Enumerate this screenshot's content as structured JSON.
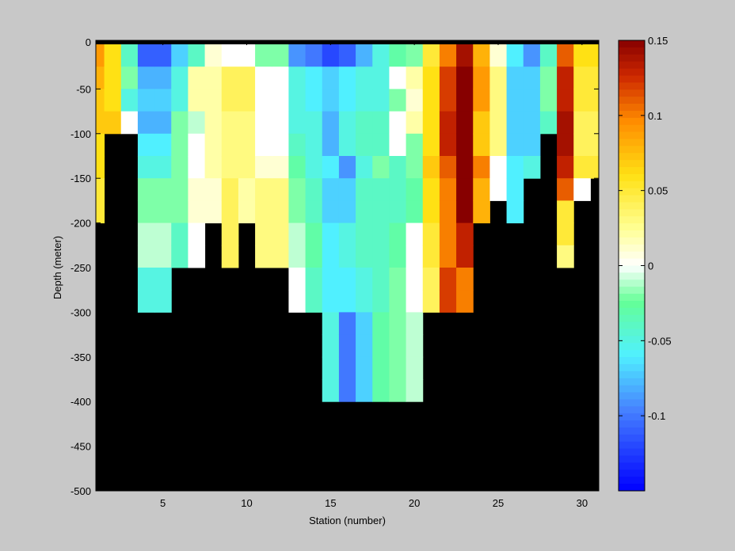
{
  "chart_data": {
    "type": "heatmap",
    "title": "",
    "xlabel": "Station (number)",
    "ylabel": "Depth (meter)",
    "xlim": [
      1,
      31
    ],
    "ylim": [
      -500,
      0
    ],
    "xticks": [
      5,
      10,
      15,
      20,
      25,
      30
    ],
    "yticks": [
      0,
      -50,
      -100,
      -150,
      -200,
      -250,
      -300,
      -350,
      -400,
      -450,
      -500
    ],
    "depth_bins": [
      0,
      -25,
      -50,
      -75,
      -100,
      -125,
      -150,
      -175,
      -200,
      -225,
      -250,
      -275,
      -300,
      -325,
      -350,
      -375,
      -400
    ],
    "mask_color": "#000000",
    "colorbar": {
      "colormap": "jet-like diverging",
      "range": [
        -0.15,
        0.15
      ],
      "ticks": [
        0.15,
        0.1,
        0.05,
        0,
        -0.05,
        -0.1
      ],
      "tick_labels": [
        "0.15",
        "0.1",
        "0.05",
        "0",
        "-0.05",
        "-0.1"
      ]
    },
    "stations": [
      {
        "station": 1,
        "values": [
          0.09,
          0.08,
          0.07,
          0.07,
          0.06,
          0.06,
          0.05,
          0.05
        ]
      },
      {
        "station": 2,
        "values": [
          0.06,
          0.06,
          0.06,
          0.07
        ]
      },
      {
        "station": 3,
        "values": [
          -0.04,
          -0.02,
          -0.05,
          0.0
        ]
      },
      {
        "station": 4,
        "values": [
          -0.11,
          -0.08,
          -0.07,
          -0.08,
          -0.06,
          -0.05,
          -0.02,
          -0.02,
          -0.01,
          -0.01,
          -0.05,
          -0.05
        ]
      },
      {
        "station": 5,
        "values": [
          -0.11,
          -0.08,
          -0.07,
          -0.08,
          -0.06,
          -0.05,
          -0.02,
          -0.02,
          -0.01,
          -0.01,
          -0.05,
          -0.05
        ]
      },
      {
        "station": 6,
        "values": [
          -0.07,
          -0.05,
          -0.05,
          -0.02,
          -0.02,
          -0.02,
          -0.02,
          -0.02,
          -0.04,
          -0.04
        ]
      },
      {
        "station": 7,
        "values": [
          -0.04,
          0.02,
          0.02,
          -0.01,
          0.0,
          0.0,
          0.01,
          0.01,
          0.0,
          0.0
        ]
      },
      {
        "station": 8,
        "values": [
          0.01,
          0.02,
          0.02,
          0.02,
          0.02,
          0.02,
          0.01,
          0.01
        ]
      },
      {
        "station": 9,
        "values": [
          0.0,
          0.04,
          0.04,
          0.03,
          0.03,
          0.03,
          0.04,
          0.04,
          0.04,
          0.04
        ]
      },
      {
        "station": 10,
        "values": [
          0.0,
          0.04,
          0.04,
          0.03,
          0.03,
          0.03,
          0.02,
          0.02
        ]
      },
      {
        "station": 11,
        "values": [
          -0.02,
          0.0,
          0.0,
          0.0,
          0.0,
          0.01,
          0.03,
          0.03,
          0.03,
          0.03
        ]
      },
      {
        "station": 12,
        "values": [
          -0.02,
          0.0,
          0.0,
          0.0,
          0.0,
          0.01,
          0.03,
          0.03,
          0.03,
          0.03
        ]
      },
      {
        "station": 13,
        "values": [
          -0.09,
          -0.05,
          -0.05,
          -0.05,
          -0.04,
          -0.03,
          -0.02,
          -0.02,
          -0.01,
          -0.01,
          0.0,
          0.0
        ]
      },
      {
        "station": 14,
        "values": [
          -0.1,
          -0.06,
          -0.06,
          -0.05,
          -0.05,
          -0.05,
          -0.04,
          -0.04,
          -0.03,
          -0.03,
          -0.04,
          -0.04
        ]
      },
      {
        "station": 15,
        "values": [
          -0.12,
          -0.07,
          -0.07,
          -0.08,
          -0.08,
          -0.06,
          -0.07,
          -0.07,
          -0.06,
          -0.06,
          -0.06,
          -0.06,
          -0.05,
          -0.05,
          -0.05,
          -0.05
        ]
      },
      {
        "station": 16,
        "values": [
          -0.11,
          -0.06,
          -0.06,
          -0.05,
          -0.05,
          -0.09,
          -0.07,
          -0.07,
          -0.05,
          -0.05,
          -0.06,
          -0.06,
          -0.1,
          -0.1,
          -0.1,
          -0.1
        ]
      },
      {
        "station": 17,
        "values": [
          -0.08,
          -0.05,
          -0.05,
          -0.04,
          -0.04,
          -0.05,
          -0.04,
          -0.04,
          -0.04,
          -0.04,
          -0.05,
          -0.05,
          -0.07,
          -0.07,
          -0.07,
          -0.07
        ]
      },
      {
        "station": 18,
        "values": [
          -0.05,
          -0.05,
          -0.05,
          -0.04,
          -0.04,
          -0.02,
          -0.04,
          -0.04,
          -0.04,
          -0.04,
          -0.04,
          -0.04,
          -0.03,
          -0.03,
          -0.03,
          -0.03
        ]
      },
      {
        "station": 19,
        "values": [
          -0.03,
          0.0,
          -0.02,
          0.0,
          0.0,
          -0.04,
          -0.04,
          -0.04,
          -0.03,
          -0.03,
          -0.02,
          -0.02,
          -0.02,
          -0.02,
          -0.02,
          -0.02
        ]
      },
      {
        "station": 20,
        "values": [
          -0.02,
          0.02,
          0.01,
          0.02,
          -0.02,
          -0.02,
          -0.03,
          -0.03,
          0.0,
          0.0,
          0.0,
          0.0,
          -0.01,
          -0.01,
          -0.01,
          -0.01
        ]
      },
      {
        "station": 21,
        "values": [
          0.05,
          0.06,
          0.06,
          0.06,
          0.06,
          0.07,
          0.06,
          0.06,
          0.05,
          0.05,
          0.04,
          0.04
        ]
      },
      {
        "station": 22,
        "values": [
          0.1,
          0.12,
          0.12,
          0.13,
          0.13,
          0.11,
          0.1,
          0.1,
          0.1,
          0.1,
          0.12,
          0.12
        ]
      },
      {
        "station": 23,
        "values": [
          0.14,
          0.15,
          0.15,
          0.15,
          0.15,
          0.15,
          0.15,
          0.15,
          0.13,
          0.13,
          0.1,
          0.1
        ]
      },
      {
        "station": 24,
        "values": [
          0.08,
          0.09,
          0.09,
          0.07,
          0.07,
          0.1,
          0.08,
          0.08
        ]
      },
      {
        "station": 25,
        "values": [
          0.01,
          0.03,
          0.03,
          0.03,
          0.03,
          0.0,
          0.0
        ]
      },
      {
        "station": 26,
        "values": [
          -0.06,
          -0.07,
          -0.07,
          -0.07,
          -0.07,
          -0.06,
          -0.06,
          -0.06
        ]
      },
      {
        "station": 27,
        "values": [
          -0.09,
          -0.07,
          -0.07,
          -0.07,
          -0.07,
          -0.05
        ]
      },
      {
        "station": 28,
        "values": [
          -0.04,
          -0.02,
          -0.02,
          -0.04
        ]
      },
      {
        "station": 29,
        "values": [
          0.11,
          0.13,
          0.13,
          0.14,
          0.14,
          0.13,
          0.11,
          0.05,
          0.05,
          0.03
        ]
      },
      {
        "station": 30,
        "values": [
          0.06,
          0.05,
          0.05,
          0.04,
          0.04,
          0.05,
          0.0
        ]
      },
      {
        "station": 31,
        "values": [
          0.06,
          0.05,
          0.05,
          0.04,
          0.04,
          0.05
        ]
      }
    ]
  }
}
